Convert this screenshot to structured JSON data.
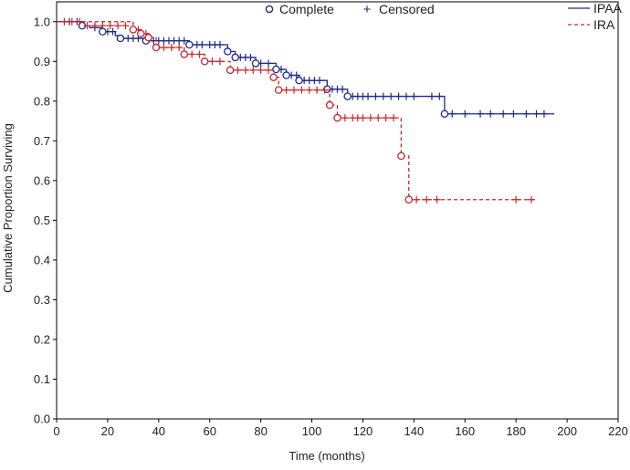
{
  "chart_data": {
    "type": "line",
    "title": "",
    "xlabel": "Time (months)",
    "ylabel": "Cumulative Proportion Surviving",
    "xlim": [
      0,
      220
    ],
    "ylim": [
      0.0,
      1.05
    ],
    "x_ticks": [
      0,
      20,
      40,
      60,
      80,
      100,
      120,
      140,
      160,
      180,
      200,
      220
    ],
    "y_ticks": [
      0.0,
      0.1,
      0.2,
      0.3,
      0.4,
      0.5,
      0.6,
      0.7,
      0.8,
      0.9,
      1.0
    ],
    "grid": false,
    "legend_placement": "top-right",
    "marker_legend": {
      "complete_label": "Complete",
      "censored_label": "Censored",
      "complete_symbol": "o",
      "censored_symbol": "+"
    },
    "series": [
      {
        "name": "IPAA",
        "color": "#1f2a8a",
        "line_style": "solid",
        "steps": [
          [
            0,
            1.0
          ],
          [
            10,
            0.99
          ],
          [
            13,
            0.985
          ],
          [
            18,
            0.975
          ],
          [
            23,
            0.965
          ],
          [
            25,
            0.958
          ],
          [
            35,
            0.952
          ],
          [
            52,
            0.942
          ],
          [
            67,
            0.925
          ],
          [
            70,
            0.91
          ],
          [
            78,
            0.895
          ],
          [
            86,
            0.88
          ],
          [
            90,
            0.865
          ],
          [
            95,
            0.852
          ],
          [
            106,
            0.83
          ],
          [
            114,
            0.812
          ],
          [
            152,
            0.768
          ],
          [
            195,
            0.768
          ]
        ],
        "events": [
          10,
          18,
          25,
          35,
          52,
          67,
          70,
          78,
          86,
          90,
          95,
          106,
          114,
          152
        ],
        "censored": [
          [
            5,
            1.0
          ],
          [
            8,
            1.0
          ],
          [
            15,
            0.985
          ],
          [
            20,
            0.975
          ],
          [
            22,
            0.975
          ],
          [
            28,
            0.958
          ],
          [
            30,
            0.958
          ],
          [
            32,
            0.958
          ],
          [
            38,
            0.952
          ],
          [
            40,
            0.952
          ],
          [
            42,
            0.952
          ],
          [
            44,
            0.952
          ],
          [
            46,
            0.952
          ],
          [
            48,
            0.952
          ],
          [
            50,
            0.952
          ],
          [
            55,
            0.942
          ],
          [
            57,
            0.942
          ],
          [
            60,
            0.942
          ],
          [
            62,
            0.942
          ],
          [
            64,
            0.942
          ],
          [
            72,
            0.91
          ],
          [
            74,
            0.91
          ],
          [
            76,
            0.91
          ],
          [
            80,
            0.895
          ],
          [
            83,
            0.895
          ],
          [
            88,
            0.88
          ],
          [
            92,
            0.865
          ],
          [
            94,
            0.865
          ],
          [
            97,
            0.852
          ],
          [
            99,
            0.852
          ],
          [
            101,
            0.852
          ],
          [
            103,
            0.852
          ],
          [
            108,
            0.83
          ],
          [
            110,
            0.83
          ],
          [
            112,
            0.83
          ],
          [
            116,
            0.812
          ],
          [
            118,
            0.812
          ],
          [
            120,
            0.812
          ],
          [
            122,
            0.812
          ],
          [
            125,
            0.812
          ],
          [
            128,
            0.812
          ],
          [
            131,
            0.812
          ],
          [
            134,
            0.812
          ],
          [
            137,
            0.812
          ],
          [
            140,
            0.812
          ],
          [
            147,
            0.812
          ],
          [
            150,
            0.812
          ],
          [
            155,
            0.768
          ],
          [
            160,
            0.768
          ],
          [
            166,
            0.768
          ],
          [
            170,
            0.768
          ],
          [
            175,
            0.768
          ],
          [
            179,
            0.768
          ],
          [
            184,
            0.768
          ],
          [
            188,
            0.768
          ],
          [
            191,
            0.768
          ]
        ]
      },
      {
        "name": "IRA",
        "color": "#c4272b",
        "line_style": "dashed",
        "steps": [
          [
            0,
            1.0
          ],
          [
            30,
            0.98
          ],
          [
            33,
            0.97
          ],
          [
            36,
            0.96
          ],
          [
            39,
            0.935
          ],
          [
            50,
            0.918
          ],
          [
            58,
            0.9
          ],
          [
            68,
            0.878
          ],
          [
            85,
            0.86
          ],
          [
            87,
            0.828
          ],
          [
            107,
            0.79
          ],
          [
            110,
            0.758
          ],
          [
            135,
            0.662
          ],
          [
            138,
            0.552
          ],
          [
            187,
            0.552
          ]
        ],
        "events": [
          30,
          33,
          36,
          39,
          50,
          58,
          68,
          85,
          87,
          107,
          110,
          135,
          138
        ],
        "censored": [
          [
            3,
            1.0
          ],
          [
            6,
            1.0
          ],
          [
            9,
            1.0
          ],
          [
            12,
            0.99
          ],
          [
            15,
            0.99
          ],
          [
            18,
            0.99
          ],
          [
            21,
            0.99
          ],
          [
            24,
            0.99
          ],
          [
            27,
            0.99
          ],
          [
            32,
            0.98
          ],
          [
            35,
            0.97
          ],
          [
            42,
            0.935
          ],
          [
            45,
            0.935
          ],
          [
            48,
            0.935
          ],
          [
            53,
            0.918
          ],
          [
            56,
            0.918
          ],
          [
            61,
            0.9
          ],
          [
            64,
            0.9
          ],
          [
            71,
            0.878
          ],
          [
            74,
            0.878
          ],
          [
            77,
            0.878
          ],
          [
            80,
            0.878
          ],
          [
            83,
            0.878
          ],
          [
            90,
            0.828
          ],
          [
            93,
            0.828
          ],
          [
            96,
            0.828
          ],
          [
            99,
            0.828
          ],
          [
            102,
            0.828
          ],
          [
            105,
            0.828
          ],
          [
            113,
            0.758
          ],
          [
            116,
            0.758
          ],
          [
            118,
            0.758
          ],
          [
            120,
            0.758
          ],
          [
            123,
            0.758
          ],
          [
            126,
            0.758
          ],
          [
            129,
            0.758
          ],
          [
            132,
            0.758
          ],
          [
            141,
            0.552
          ],
          [
            145,
            0.552
          ],
          [
            149,
            0.552
          ],
          [
            180,
            0.552
          ],
          [
            186,
            0.552
          ]
        ]
      }
    ]
  }
}
